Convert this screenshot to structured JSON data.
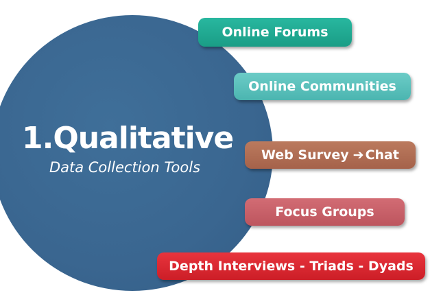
{
  "circle": {
    "title": "1.Qualitative",
    "subtitle": "Data Collection Tools"
  },
  "tools": {
    "online_forums": "Online Forums",
    "online_communities": "Online Communities",
    "web_survey": "Web Survey",
    "arrow_icon": "right-arrow-icon",
    "chat": "Chat",
    "focus_groups": "Focus Groups",
    "depth_interviews": "Depth Interviews - Triads - Dyads"
  },
  "colors": {
    "circle": "#3a6690",
    "online_forums": "#22ad96",
    "online_communities": "#5cc1bc",
    "web_survey_chat": "#b06c53",
    "focus_groups": "#c85f68",
    "depth_interviews": "#dc2a33"
  }
}
